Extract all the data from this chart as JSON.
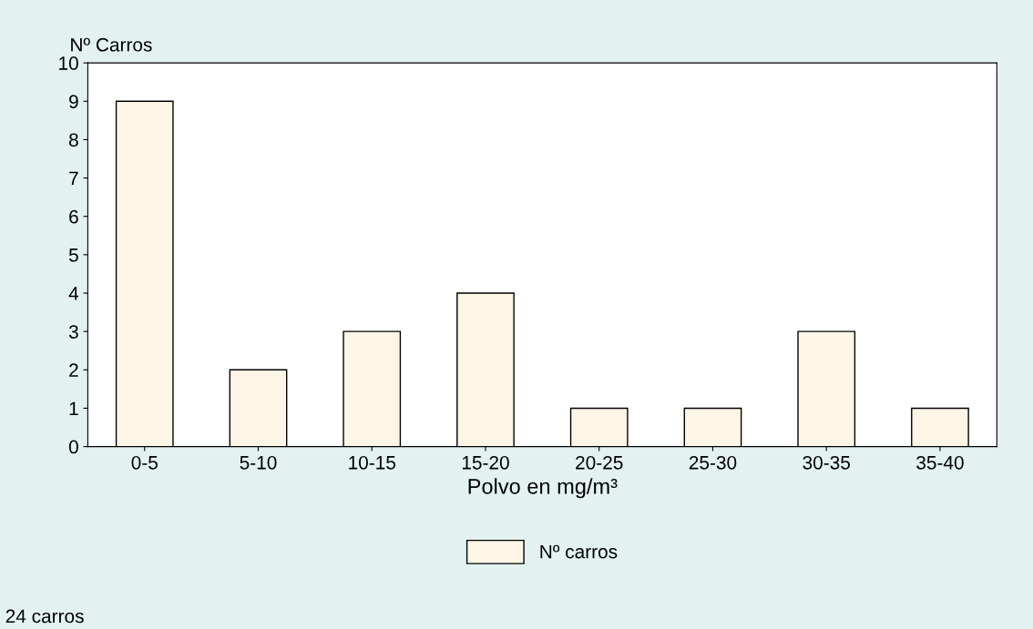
{
  "chart_data": {
    "type": "bar",
    "ylabel": "Nº Carros",
    "xlabel": "Polvo en mg/m³",
    "categories": [
      "0-5",
      "5-10",
      "10-15",
      "15-20",
      "20-25",
      "25-30",
      "30-35",
      "35-40"
    ],
    "series": [
      {
        "name": "Nº carros",
        "color": "#fdf5e6",
        "values": [
          9,
          2,
          3,
          4,
          1,
          1,
          3,
          1
        ]
      }
    ],
    "ylim": [
      0,
      10
    ],
    "yticks": [
      0,
      1,
      2,
      3,
      4,
      5,
      6,
      7,
      8,
      9,
      10
    ],
    "legend": "bottom",
    "annotations": [
      "24 carros"
    ]
  }
}
